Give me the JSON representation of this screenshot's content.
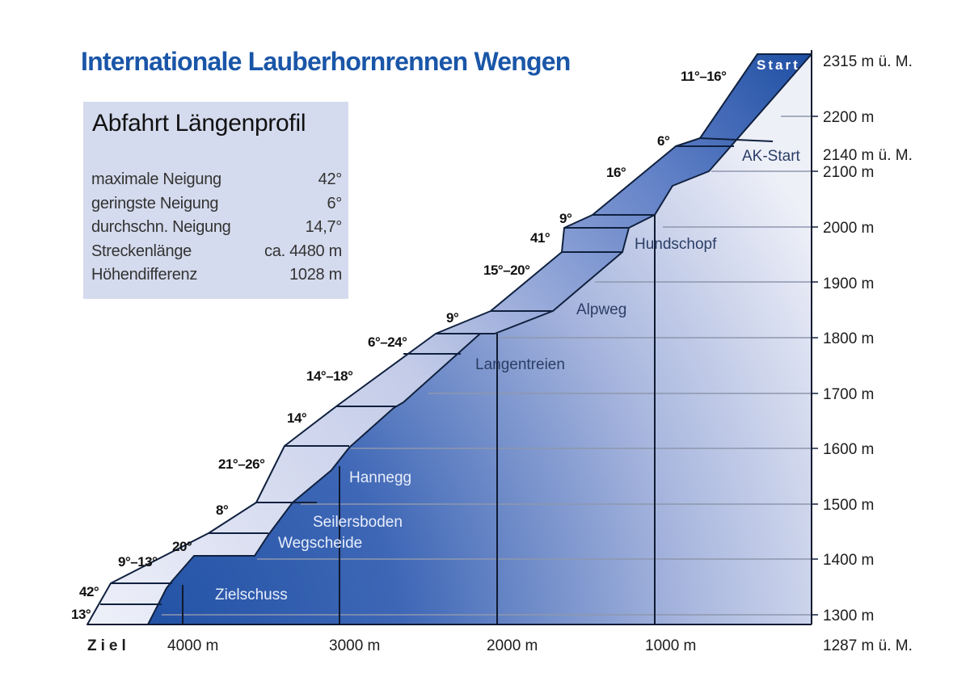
{
  "title": "Internationale Lauberhornrennen Wengen",
  "info_panel": {
    "heading": "Abfahrt Längenprofil",
    "stats": [
      {
        "label": "maximale Neigung",
        "value": "42°"
      },
      {
        "label": "geringste Neigung",
        "value": "6°"
      },
      {
        "label": "durchschn. Neigung",
        "value": "14,7°"
      },
      {
        "label": "Streckenlänge",
        "value": "ca. 4480 m"
      },
      {
        "label": "Höhendifferenz",
        "value": "1028 m"
      }
    ]
  },
  "altitude_labels": [
    "2315 m ü. M.",
    "2200 m",
    "2140 m ü. M.",
    "2100 m",
    "2000 m",
    "1900 m",
    "1800 m",
    "1700 m",
    "1600 m",
    "1500 m",
    "1400 m",
    "1300 m",
    "1287 m ü. M."
  ],
  "distance_labels": [
    "Ziel",
    "4000 m",
    "3000 m",
    "2000 m",
    "1000 m"
  ],
  "start_label": "Start",
  "section_names": [
    "AK-Start",
    "Hundschopf",
    "Alpweg",
    "Langentreien",
    "Hannegg",
    "Seilersboden",
    "Wegscheide",
    "Zielschuss"
  ],
  "gradient_labels": [
    "11°–16°",
    "6°",
    "16°",
    "9°",
    "41°",
    "15°–20°",
    "9°",
    "6°–24°",
    "14°–18°",
    "14°",
    "21°–26°",
    "8°",
    "20°",
    "9°–13°",
    "42°",
    "13°"
  ],
  "colors": {
    "title": "#1a56a8",
    "course_dark": "#1f4fa3",
    "course_light": "#eef0f8",
    "panel": "#d5dbee"
  }
}
